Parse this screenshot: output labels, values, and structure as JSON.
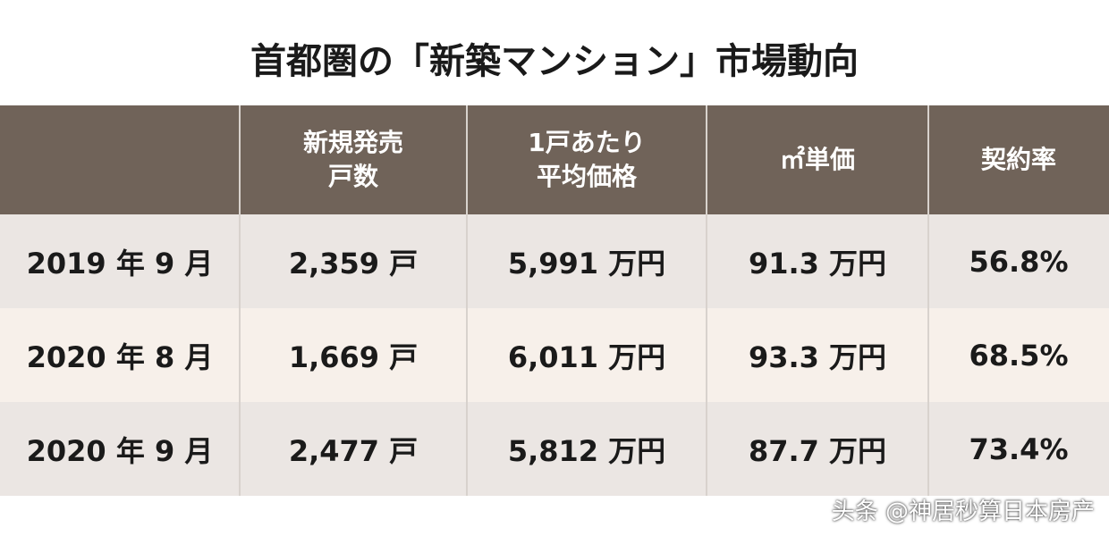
{
  "title": "首都圏の「新築マンション」市場動向",
  "table": {
    "header": [
      [
        "新規発売",
        "戸数"
      ],
      [
        "1戸あたり",
        "平均価格"
      ],
      [
        "㎡単価"
      ],
      [
        "契約率"
      ]
    ],
    "rows": [
      [
        "2019 年 9 月",
        "2,359 戸",
        "5,991 万円",
        "91.3 万円",
        "56.8%"
      ],
      [
        "2020 年 8 月",
        "1,669 戸",
        "6,011 万円",
        "93.3 万円",
        "68.5%"
      ],
      [
        "2020 年 9 月",
        "2,477 戸",
        "5,812 万円",
        "87.7 万円",
        "73.4%"
      ]
    ]
  },
  "watermark": "头条 @神居秒算日本房产"
}
